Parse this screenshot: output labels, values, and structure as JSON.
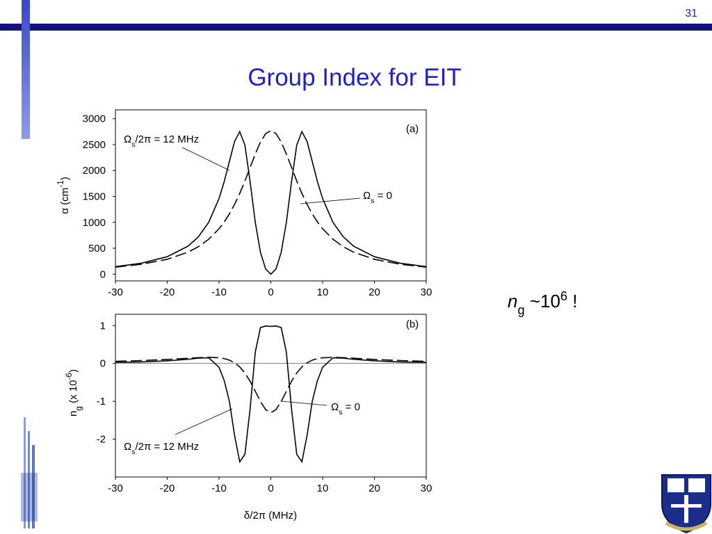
{
  "slide": {
    "page_number": "31",
    "title": "Group Index for EIT",
    "note": [
      "n",
      "g",
      " ~10",
      "6",
      " !"
    ]
  },
  "chart_data": [
    {
      "type": "line",
      "panel_label": "(a)",
      "ylabel": [
        "α (cm",
        "-1",
        ")"
      ],
      "xlim": [
        -30,
        30
      ],
      "ylim": [
        -130,
        3170
      ],
      "xticks": [
        -30,
        -20,
        -10,
        0,
        10,
        20,
        30
      ],
      "yticks": [
        0,
        500,
        1000,
        1500,
        2000,
        2500,
        3000
      ],
      "x": [
        -30,
        -25,
        -20,
        -16,
        -14,
        -12,
        -10,
        -9,
        -8,
        -7,
        -6,
        -5,
        -4,
        -3,
        -2,
        -1,
        0,
        1,
        2,
        3,
        4,
        5,
        6,
        7,
        8,
        9,
        10,
        12,
        14,
        16,
        20,
        25,
        30
      ],
      "series": [
        {
          "name": [
            "Ω",
            "s",
            "/2π = 12 MHz"
          ],
          "color": "#000000",
          "dashed": false,
          "values": [
            145,
            211,
            337,
            540,
            719,
            999,
            1458,
            1785,
            2174,
            2559,
            2750,
            2489,
            1785,
            999,
            421,
            100,
            0,
            100,
            421,
            999,
            1785,
            2489,
            2750,
            2559,
            2174,
            1785,
            1458,
            999,
            719,
            540,
            337,
            211,
            145
          ]
        },
        {
          "name": [
            "Ω",
            "s",
            " = 0"
          ],
          "color": "#000000",
          "dashed": true,
          "values": [
            135,
            191,
            287,
            424,
            529,
            673,
            876,
            1007,
            1162,
            1345,
            1557,
            1798,
            2058,
            2319,
            2550,
            2711,
            2770,
            2711,
            2550,
            2319,
            2058,
            1798,
            1557,
            1345,
            1162,
            1007,
            876,
            673,
            529,
            424,
            287,
            191,
            135
          ]
        }
      ]
    },
    {
      "type": "line",
      "panel_label": "(b)",
      "ylabel": [
        "n",
        "g",
        " (x 10",
        "-6",
        ")"
      ],
      "xlabel": "δ/2π (MHz)",
      "xlim": [
        -30,
        30
      ],
      "ylim": [
        -3,
        1.3
      ],
      "zero_line": true,
      "xticks": [
        -30,
        -20,
        -10,
        0,
        10,
        20,
        30
      ],
      "yticks": [
        1,
        0,
        -1,
        -2
      ],
      "x": [
        -30,
        -25,
        -20,
        -16,
        -14,
        -12,
        -10,
        -9,
        -8,
        -7,
        -6,
        -5,
        -4,
        -3,
        -2,
        -1,
        0,
        1,
        2,
        3,
        4,
        5,
        6,
        7,
        8,
        9,
        10,
        12,
        14,
        16,
        20,
        25,
        30
      ],
      "series": [
        {
          "name": [
            "Ω",
            "s",
            " = 0"
          ],
          "color": "#000000",
          "dashed": true,
          "values": [
            0.057,
            0.077,
            0.107,
            0.138,
            0.153,
            0.162,
            0.151,
            0.129,
            0.088,
            0.018,
            -0.091,
            -0.252,
            -0.469,
            -0.734,
            -1.006,
            -1.219,
            -1.3,
            -1.219,
            -1.006,
            -0.734,
            -0.469,
            -0.252,
            -0.091,
            0.018,
            0.088,
            0.129,
            0.151,
            0.162,
            0.153,
            0.138,
            0.107,
            0.077,
            0.057
          ]
        },
        {
          "name": [
            "Ω",
            "s",
            "/2π = 12 MHz"
          ],
          "color": "#000000",
          "dashed": false,
          "values": [
            0.03,
            0.04,
            0.07,
            0.11,
            0.14,
            0.15,
            -0.1,
            -0.45,
            -1.0,
            -1.9,
            -2.6,
            -2.4,
            -1.2,
            0.3,
            0.95,
            0.99,
            0.98,
            0.99,
            0.95,
            0.3,
            -1.2,
            -2.4,
            -2.6,
            -1.9,
            -1.0,
            -0.45,
            -0.1,
            0.15,
            0.14,
            0.11,
            0.07,
            0.04,
            0.03
          ]
        }
      ]
    }
  ]
}
